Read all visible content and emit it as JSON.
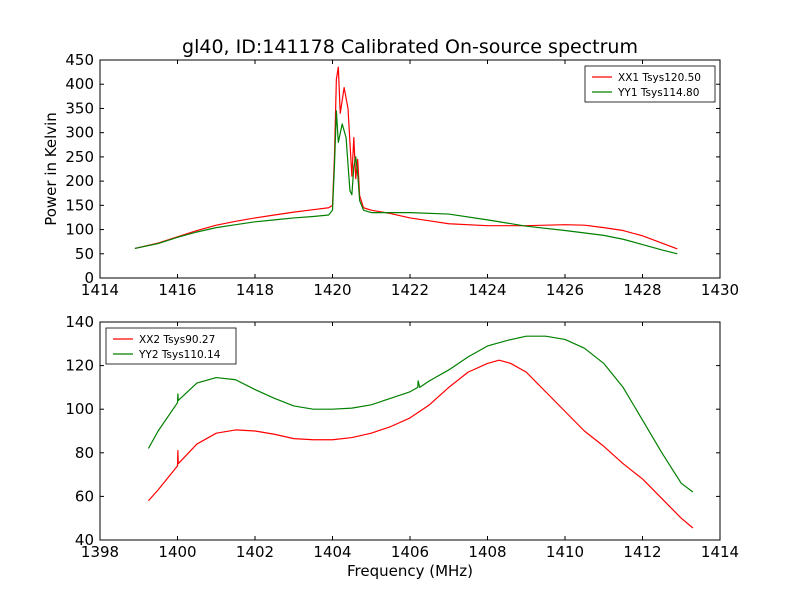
{
  "chart_data": [
    {
      "type": "line",
      "title": "gl40, ID:141178 Calibrated On-source spectrum",
      "xlabel": "",
      "ylabel": "Power in Kelvin",
      "xlim": [
        1414,
        1430
      ],
      "ylim": [
        0,
        450
      ],
      "xticks": [
        "1414",
        "1416",
        "1418",
        "1420",
        "1422",
        "1424",
        "1426",
        "1428",
        "1430"
      ],
      "yticks": [
        "0",
        "50",
        "100",
        "150",
        "200",
        "250",
        "300",
        "350",
        "400",
        "450"
      ],
      "legend_position": "top-right",
      "series": [
        {
          "name": "XX1 Tsys120.50",
          "color": "#ff0000",
          "points": [
            [
              1414.9,
              61
            ],
            [
              1415.5,
              72
            ],
            [
              1416,
              85
            ],
            [
              1416.5,
              98
            ],
            [
              1417,
              109
            ],
            [
              1417.5,
              117
            ],
            [
              1418,
              124
            ],
            [
              1418.5,
              130
            ],
            [
              1419,
              136
            ],
            [
              1419.5,
              141
            ],
            [
              1419.9,
              145
            ],
            [
              1420.0,
              150
            ],
            [
              1420.05,
              250
            ],
            [
              1420.1,
              410
            ],
            [
              1420.15,
              435
            ],
            [
              1420.2,
              340
            ],
            [
              1420.3,
              393
            ],
            [
              1420.4,
              350
            ],
            [
              1420.5,
              210
            ],
            [
              1420.55,
              290
            ],
            [
              1420.6,
              205
            ],
            [
              1420.65,
              245
            ],
            [
              1420.7,
              170
            ],
            [
              1420.8,
              145
            ],
            [
              1421,
              140
            ],
            [
              1421.5,
              133
            ],
            [
              1422,
              124
            ],
            [
              1422.5,
              118
            ],
            [
              1423,
              112
            ],
            [
              1424,
              108
            ],
            [
              1425,
              108
            ],
            [
              1426,
              110
            ],
            [
              1426.5,
              109
            ],
            [
              1427,
              104
            ],
            [
              1427.5,
              98
            ],
            [
              1428,
              87
            ],
            [
              1428.5,
              72
            ],
            [
              1428.9,
              60
            ]
          ]
        },
        {
          "name": "YY1 Tsys114.80",
          "color": "#008000",
          "points": [
            [
              1414.9,
              61
            ],
            [
              1415.5,
              71
            ],
            [
              1416,
              84
            ],
            [
              1416.5,
              95
            ],
            [
              1417,
              104
            ],
            [
              1417.5,
              110
            ],
            [
              1418,
              116
            ],
            [
              1418.5,
              120
            ],
            [
              1419,
              124
            ],
            [
              1419.5,
              127
            ],
            [
              1419.9,
              130
            ],
            [
              1420.0,
              140
            ],
            [
              1420.05,
              230
            ],
            [
              1420.1,
              345
            ],
            [
              1420.15,
              280
            ],
            [
              1420.25,
              318
            ],
            [
              1420.35,
              290
            ],
            [
              1420.45,
              180
            ],
            [
              1420.5,
              172
            ],
            [
              1420.55,
              230
            ],
            [
              1420.6,
              250
            ],
            [
              1420.65,
              215
            ],
            [
              1420.7,
              160
            ],
            [
              1420.8,
              140
            ],
            [
              1421,
              135
            ],
            [
              1421.5,
              135
            ],
            [
              1422,
              135
            ],
            [
              1423,
              132
            ],
            [
              1424,
              120
            ],
            [
              1425,
              107
            ],
            [
              1426,
              98
            ],
            [
              1427,
              88
            ],
            [
              1427.5,
              80
            ],
            [
              1428,
              69
            ],
            [
              1428.5,
              58
            ],
            [
              1428.9,
              50
            ]
          ]
        }
      ]
    },
    {
      "type": "line",
      "title": "",
      "xlabel": "Frequency (MHz)",
      "ylabel": "",
      "xlim": [
        1398,
        1414
      ],
      "ylim": [
        40,
        140
      ],
      "xticks": [
        "1398",
        "1400",
        "1402",
        "1404",
        "1406",
        "1408",
        "1410",
        "1412",
        "1414"
      ],
      "yticks": [
        "40",
        "60",
        "80",
        "100",
        "120",
        "140"
      ],
      "legend_position": "top-left",
      "series": [
        {
          "name": "XX2 Tsys90.27",
          "color": "#ff0000",
          "points": [
            [
              1399.25,
              58
            ],
            [
              1399.5,
              63
            ],
            [
              1400,
              74
            ],
            [
              1400.01,
              81
            ],
            [
              1400.02,
              75
            ],
            [
              1400.5,
              84
            ],
            [
              1401,
              89
            ],
            [
              1401.5,
              90.5
            ],
            [
              1402,
              90
            ],
            [
              1402.5,
              88.5
            ],
            [
              1403,
              86.5
            ],
            [
              1403.5,
              86
            ],
            [
              1404,
              86
            ],
            [
              1404.5,
              87
            ],
            [
              1405,
              89
            ],
            [
              1405.5,
              92
            ],
            [
              1406,
              96
            ],
            [
              1406.5,
              102
            ],
            [
              1407,
              110
            ],
            [
              1407.5,
              117
            ],
            [
              1408,
              121
            ],
            [
              1408.3,
              122.5
            ],
            [
              1408.6,
              121
            ],
            [
              1409,
              117
            ],
            [
              1409.5,
              108
            ],
            [
              1410,
              99
            ],
            [
              1410.5,
              90
            ],
            [
              1411,
              83
            ],
            [
              1411.5,
              75
            ],
            [
              1412,
              68
            ],
            [
              1412.5,
              59
            ],
            [
              1413,
              50
            ],
            [
              1413.3,
              45.5
            ]
          ]
        },
        {
          "name": "YY2 Tsys110.14",
          "color": "#008000",
          "points": [
            [
              1399.25,
              82
            ],
            [
              1399.5,
              90
            ],
            [
              1400,
              103
            ],
            [
              1400.01,
              107
            ],
            [
              1400.02,
              104
            ],
            [
              1400.5,
              112
            ],
            [
              1401,
              114.5
            ],
            [
              1401.5,
              113.5
            ],
            [
              1402,
              109
            ],
            [
              1402.5,
              105
            ],
            [
              1403,
              101.5
            ],
            [
              1403.5,
              100
            ],
            [
              1404,
              100
            ],
            [
              1404.5,
              100.5
            ],
            [
              1405,
              102
            ],
            [
              1405.5,
              105
            ],
            [
              1406,
              108
            ],
            [
              1406.2,
              110
            ],
            [
              1406.21,
              113
            ],
            [
              1406.25,
              110
            ],
            [
              1406.5,
              113
            ],
            [
              1407,
              118
            ],
            [
              1407.5,
              124
            ],
            [
              1408,
              129
            ],
            [
              1408.5,
              131.5
            ],
            [
              1409,
              133.5
            ],
            [
              1409.5,
              133.5
            ],
            [
              1410,
              132
            ],
            [
              1410.5,
              128
            ],
            [
              1411,
              121
            ],
            [
              1411.5,
              110
            ],
            [
              1412,
              95
            ],
            [
              1412.5,
              80
            ],
            [
              1413,
              66
            ],
            [
              1413.3,
              62
            ]
          ]
        }
      ]
    }
  ]
}
